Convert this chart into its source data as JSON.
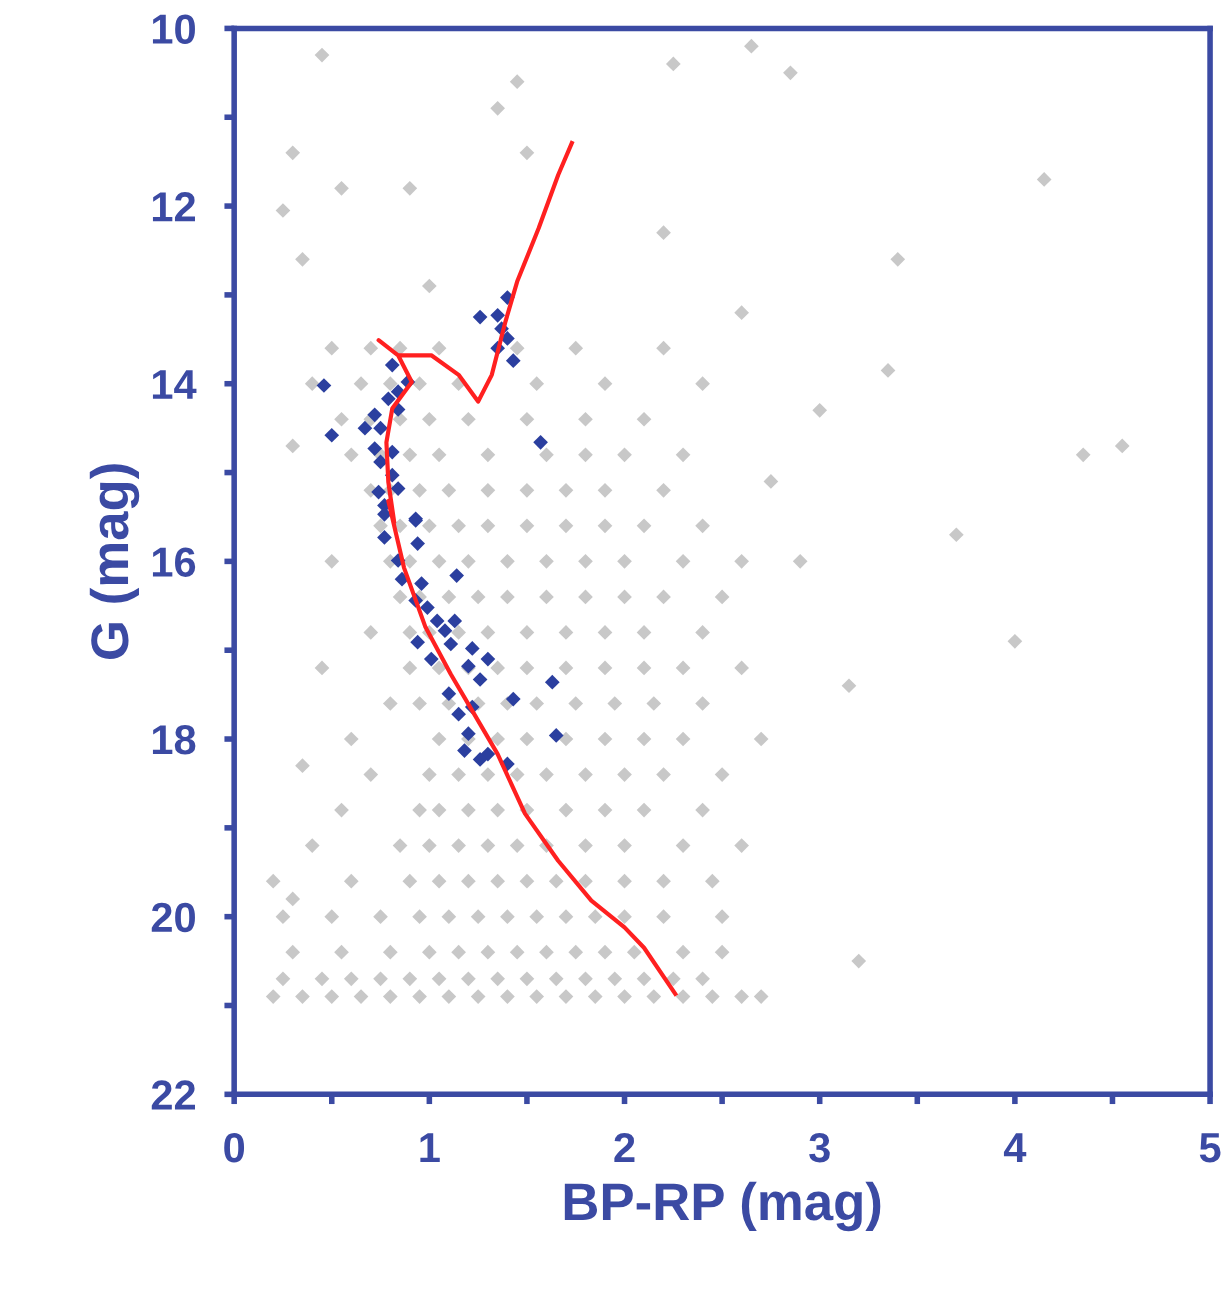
{
  "chart_data": {
    "type": "scatter",
    "xlabel": "BP-RP (mag)",
    "ylabel": "G (mag)",
    "xlim": [
      0,
      5
    ],
    "ylim": [
      22,
      10
    ],
    "xticks": [
      0,
      {
        "value": 0.5,
        "label": null
      },
      1,
      {
        "value": 1.5,
        "label": null
      },
      2,
      {
        "value": 2.5,
        "label": null
      },
      3,
      {
        "value": 3.5,
        "label": null
      },
      4,
      {
        "value": 4.5,
        "label": null
      },
      5
    ],
    "yticks": [
      10,
      {
        "value": 11,
        "label": null
      },
      12,
      {
        "value": 13,
        "label": null
      },
      14,
      {
        "value": 15,
        "label": null
      },
      16,
      {
        "value": 17,
        "label": null
      },
      18,
      {
        "value": 19,
        "label": null
      },
      20,
      {
        "value": 21,
        "label": null
      },
      22
    ],
    "grid": false,
    "marker": "diamond",
    "series": [
      {
        "color": "#c8c8c8",
        "x": [
          0.2,
          0.35,
          0.5,
          0.65,
          0.8,
          0.95,
          1.1,
          1.25,
          1.4,
          1.55,
          1.7,
          1.85,
          2.0,
          2.15,
          2.3,
          2.45,
          2.6,
          2.7,
          0.25,
          0.45,
          0.6,
          0.75,
          0.9,
          1.05,
          1.2,
          1.35,
          1.5,
          1.65,
          1.8,
          1.95,
          2.1,
          2.25,
          2.4,
          0.3,
          0.55,
          0.8,
          1.0,
          1.15,
          1.3,
          1.45,
          1.6,
          1.75,
          1.9,
          2.05,
          2.3,
          2.5,
          0.25,
          0.5,
          0.75,
          0.95,
          1.1,
          1.25,
          1.4,
          1.55,
          1.7,
          1.85,
          2.0,
          2.2,
          2.5,
          0.2,
          0.6,
          0.9,
          1.05,
          1.2,
          1.35,
          1.5,
          1.65,
          1.8,
          2.0,
          2.2,
          2.45,
          0.4,
          0.85,
          1.0,
          1.15,
          1.3,
          1.45,
          1.6,
          1.8,
          2.0,
          2.3,
          2.6,
          0.55,
          0.95,
          1.05,
          1.2,
          1.35,
          1.5,
          1.7,
          1.9,
          2.1,
          2.4,
          0.7,
          1.0,
          1.15,
          1.3,
          1.45,
          1.6,
          1.8,
          2.0,
          2.2,
          2.5,
          0.6,
          1.05,
          1.2,
          1.35,
          1.5,
          1.7,
          1.9,
          2.1,
          2.3,
          2.7,
          0.8,
          0.95,
          1.1,
          1.25,
          1.4,
          1.55,
          1.75,
          1.95,
          2.15,
          2.4,
          0.45,
          0.9,
          1.05,
          1.2,
          1.35,
          1.5,
          1.7,
          1.9,
          2.1,
          2.3,
          2.6,
          0.7,
          0.9,
          1.0,
          1.15,
          1.3,
          1.5,
          1.7,
          1.9,
          2.1,
          2.4,
          0.85,
          0.95,
          1.1,
          1.25,
          1.4,
          1.6,
          1.8,
          2.0,
          2.2,
          2.5,
          0.8,
          0.9,
          1.05,
          1.2,
          1.4,
          1.6,
          1.8,
          2.0,
          2.3,
          2.6,
          0.75,
          0.85,
          1.0,
          1.15,
          1.3,
          1.5,
          1.7,
          1.9,
          2.1,
          2.4,
          0.7,
          0.8,
          0.95,
          1.1,
          1.3,
          1.5,
          1.7,
          1.9,
          2.2,
          0.6,
          0.75,
          0.9,
          1.05,
          1.3,
          1.6,
          1.8,
          2.0,
          2.3,
          0.55,
          0.7,
          0.85,
          1.0,
          1.2,
          1.5,
          1.8,
          2.1,
          0.4,
          0.65,
          0.8,
          0.95,
          1.15,
          1.55,
          1.9,
          2.4,
          0.5,
          0.7,
          0.85,
          1.05,
          1.45,
          1.75,
          2.2,
          0.25,
          0.3,
          0.45,
          0.35,
          0.55,
          0.9,
          1.0,
          1.35,
          1.45,
          1.5,
          2.25,
          2.65,
          2.85,
          3.4,
          4.15,
          4.55,
          4.35,
          3.35,
          3.7,
          4.0,
          3.15,
          3.2,
          2.9,
          2.75,
          3.0,
          2.6,
          2.2,
          0.3,
          0.35,
          0.5,
          0.3
        ],
        "values": [
          20.9,
          20.9,
          20.9,
          20.9,
          20.9,
          20.9,
          20.9,
          20.9,
          20.9,
          20.9,
          20.9,
          20.9,
          20.9,
          20.9,
          20.9,
          20.9,
          20.9,
          20.9,
          20.7,
          20.7,
          20.7,
          20.7,
          20.7,
          20.7,
          20.7,
          20.7,
          20.7,
          20.7,
          20.7,
          20.7,
          20.7,
          20.7,
          20.7,
          20.4,
          20.4,
          20.4,
          20.4,
          20.4,
          20.4,
          20.4,
          20.4,
          20.4,
          20.4,
          20.4,
          20.4,
          20.4,
          20.0,
          20.0,
          20.0,
          20.0,
          20.0,
          20.0,
          20.0,
          20.0,
          20.0,
          20.0,
          20.0,
          20.0,
          20.0,
          19.6,
          19.6,
          19.6,
          19.6,
          19.6,
          19.6,
          19.6,
          19.6,
          19.6,
          19.6,
          19.6,
          19.6,
          19.2,
          19.2,
          19.2,
          19.2,
          19.2,
          19.2,
          19.2,
          19.2,
          19.2,
          19.2,
          19.2,
          18.8,
          18.8,
          18.8,
          18.8,
          18.8,
          18.8,
          18.8,
          18.8,
          18.8,
          18.8,
          18.4,
          18.4,
          18.4,
          18.4,
          18.4,
          18.4,
          18.4,
          18.4,
          18.4,
          18.4,
          18.0,
          18.0,
          18.0,
          18.0,
          18.0,
          18.0,
          18.0,
          18.0,
          18.0,
          18.0,
          17.6,
          17.6,
          17.6,
          17.6,
          17.6,
          17.6,
          17.6,
          17.6,
          17.6,
          17.6,
          17.2,
          17.2,
          17.2,
          17.2,
          17.2,
          17.2,
          17.2,
          17.2,
          17.2,
          17.2,
          17.2,
          16.8,
          16.8,
          16.8,
          16.8,
          16.8,
          16.8,
          16.8,
          16.8,
          16.8,
          16.8,
          16.4,
          16.4,
          16.4,
          16.4,
          16.4,
          16.4,
          16.4,
          16.4,
          16.4,
          16.4,
          16.0,
          16.0,
          16.0,
          16.0,
          16.0,
          16.0,
          16.0,
          16.0,
          16.0,
          16.0,
          15.6,
          15.6,
          15.6,
          15.6,
          15.6,
          15.6,
          15.6,
          15.6,
          15.6,
          15.6,
          15.2,
          15.2,
          15.2,
          15.2,
          15.2,
          15.2,
          15.2,
          15.2,
          15.2,
          14.8,
          14.8,
          14.8,
          14.8,
          14.8,
          14.8,
          14.8,
          14.8,
          14.8,
          14.4,
          14.4,
          14.4,
          14.4,
          14.4,
          14.4,
          14.4,
          14.4,
          14.0,
          14.0,
          14.0,
          14.0,
          14.0,
          14.0,
          14.0,
          14.0,
          13.6,
          13.6,
          13.6,
          13.6,
          13.6,
          13.6,
          13.6,
          12.05,
          11.4,
          10.3,
          12.6,
          11.8,
          11.8,
          12.9,
          10.9,
          10.6,
          11.4,
          10.4,
          10.2,
          10.5,
          12.6,
          11.7,
          14.7,
          14.8,
          13.85,
          15.7,
          16.9,
          17.4,
          20.5,
          16.0,
          15.1,
          14.3,
          13.2,
          12.3,
          19.8,
          18.3,
          16.0,
          14.7
        ]
      },
      {
        "color": "#2b3f9f",
        "x": [
          1.4,
          1.26,
          1.35,
          1.37,
          1.4,
          1.35,
          1.43,
          0.46,
          0.81,
          0.89,
          0.84,
          0.79,
          0.84,
          0.72,
          0.67,
          0.75,
          0.5,
          1.57,
          0.72,
          0.81,
          0.75,
          0.81,
          0.74,
          0.84,
          0.77,
          0.93,
          0.77,
          0.93,
          0.77,
          0.94,
          0.84,
          0.86,
          1.14,
          0.96,
          0.93,
          0.99,
          1.04,
          1.13,
          1.08,
          0.94,
          1.11,
          1.01,
          1.22,
          1.3,
          1.2,
          1.26,
          1.63,
          1.1,
          1.43,
          1.22,
          1.15,
          1.2,
          1.65,
          1.18,
          1.3,
          1.26,
          1.4
        ],
        "values": [
          13.03,
          13.25,
          13.23,
          13.38,
          13.49,
          13.6,
          13.74,
          14.02,
          13.79,
          13.98,
          14.09,
          14.17,
          14.29,
          14.35,
          14.5,
          14.5,
          14.58,
          14.66,
          14.73,
          14.77,
          14.88,
          15.03,
          15.22,
          15.18,
          15.37,
          15.52,
          15.47,
          15.54,
          15.73,
          15.8,
          15.99,
          16.2,
          16.16,
          16.25,
          16.44,
          16.52,
          16.67,
          16.67,
          16.78,
          16.91,
          16.93,
          17.1,
          16.98,
          17.1,
          17.18,
          17.33,
          17.36,
          17.49,
          17.55,
          17.64,
          17.72,
          17.94,
          17.96,
          18.13,
          18.17,
          18.23,
          18.28
        ]
      },
      {
        "type": "line",
        "color": "#ff2020",
        "marker": "none",
        "line_style": "solid",
        "x": [
          2.26,
          2.1,
          2.0,
          1.83,
          1.66,
          1.49,
          1.35,
          1.23,
          1.11,
          0.98,
          0.87,
          0.79,
          0.82,
          0.79,
          0.78,
          0.81,
          0.91,
          0.84,
          0.74,
          0.84,
          1.01,
          1.15,
          1.25,
          1.32,
          1.39,
          1.45,
          1.56,
          1.66,
          1.73
        ],
        "values": [
          20.87,
          20.35,
          20.12,
          19.82,
          19.37,
          18.84,
          18.17,
          17.72,
          17.27,
          16.74,
          16.07,
          15.32,
          15.56,
          15.11,
          14.66,
          14.28,
          13.98,
          13.68,
          13.51,
          13.68,
          13.68,
          13.9,
          14.2,
          13.9,
          13.3,
          12.85,
          12.25,
          11.65,
          11.29
        ]
      }
    ]
  }
}
